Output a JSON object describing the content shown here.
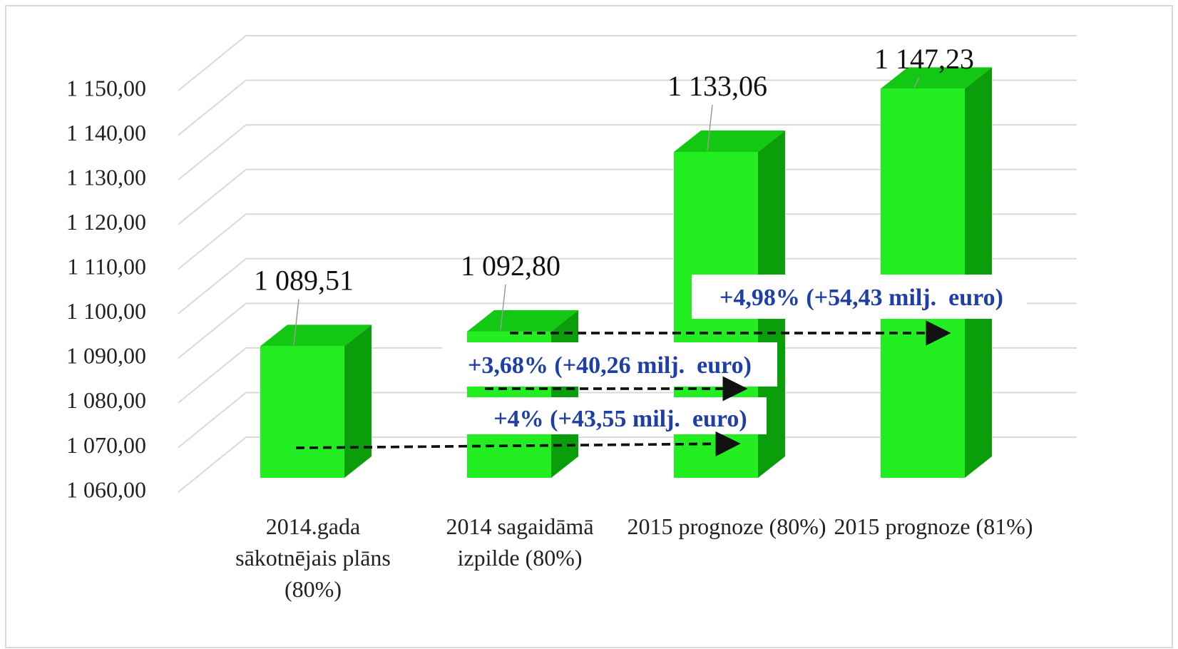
{
  "chart_data": {
    "type": "bar3d",
    "categories": [
      "2014.gada sākotnējais plāns (80%)",
      "2014 sagaidāmā izpilde (80%)",
      "2015 prognoze (80%)",
      "2015 prognoze (81%)"
    ],
    "values": [
      1089.51,
      1092.8,
      1133.06,
      1147.23
    ],
    "value_labels": [
      "1 089,51",
      "1 092,80",
      "1 133,06",
      "1 147,23"
    ],
    "color": "#22ee22",
    "ylim": [
      1060,
      1150
    ],
    "yticks": [
      {
        "value": 1060,
        "label": "1 060,00"
      },
      {
        "value": 1070,
        "label": "1 070,00"
      },
      {
        "value": 1080,
        "label": "1 080,00"
      },
      {
        "value": 1090,
        "label": "1 090,00"
      },
      {
        "value": 1100,
        "label": "1 100,00"
      },
      {
        "value": 1110,
        "label": "1 110,00"
      },
      {
        "value": 1120,
        "label": "1 120,00"
      },
      {
        "value": 1130,
        "label": "1 130,00"
      },
      {
        "value": 1140,
        "label": "1 140,00"
      },
      {
        "value": 1150,
        "label": "1 150,00"
      }
    ],
    "grid": true,
    "annotations": [
      "+4,98% (+54,43 milj.  euro)",
      "+3,68% (+40,26 milj.  euro)",
      "+4% (+43,55 milj.  euro)"
    ]
  }
}
